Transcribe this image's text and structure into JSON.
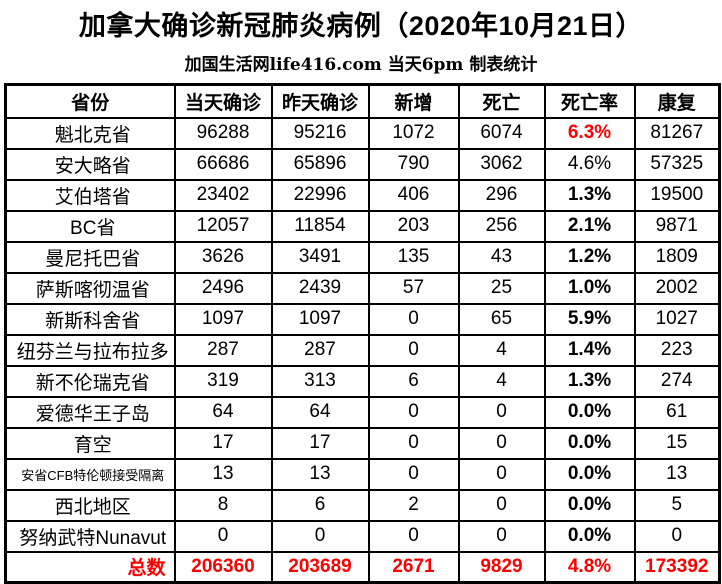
{
  "title": "加拿大确诊新冠肺炎病例（2020年10月21日）",
  "subtitle": "加国生活网life416.com 当天6pm 制表统计",
  "colors": {
    "accent_red": "#ff0000",
    "border": "#000000",
    "background": "#ffffff",
    "text": "#000000"
  },
  "table": {
    "headers": [
      "省份",
      "当天确诊",
      "昨天确诊",
      "新增",
      "死亡",
      "死亡率",
      "康复"
    ],
    "rows": [
      {
        "province": "魁北克省",
        "today": "96288",
        "yesterday": "95216",
        "new": "1072",
        "deaths": "6074",
        "death_rate": "6.3%",
        "recovered": "81267",
        "rate_red": true,
        "rate_bold": true,
        "small_label": false
      },
      {
        "province": "安大略省",
        "today": "66686",
        "yesterday": "65896",
        "new": "790",
        "deaths": "3062",
        "death_rate": "4.6%",
        "recovered": "57325",
        "rate_red": false,
        "rate_bold": false,
        "small_label": false
      },
      {
        "province": "艾伯塔省",
        "today": "23402",
        "yesterday": "22996",
        "new": "406",
        "deaths": "296",
        "death_rate": "1.3%",
        "recovered": "19500",
        "rate_red": false,
        "rate_bold": true,
        "small_label": false
      },
      {
        "province": "BC省",
        "today": "12057",
        "yesterday": "11854",
        "new": "203",
        "deaths": "256",
        "death_rate": "2.1%",
        "recovered": "9871",
        "rate_red": false,
        "rate_bold": true,
        "small_label": false
      },
      {
        "province": "曼尼托巴省",
        "today": "3626",
        "yesterday": "3491",
        "new": "135",
        "deaths": "43",
        "death_rate": "1.2%",
        "recovered": "1809",
        "rate_red": false,
        "rate_bold": true,
        "small_label": false
      },
      {
        "province": "萨斯喀彻温省",
        "today": "2496",
        "yesterday": "2439",
        "new": "57",
        "deaths": "25",
        "death_rate": "1.0%",
        "recovered": "2002",
        "rate_red": false,
        "rate_bold": true,
        "small_label": false
      },
      {
        "province": "新斯科舍省",
        "today": "1097",
        "yesterday": "1097",
        "new": "0",
        "deaths": "65",
        "death_rate": "5.9%",
        "recovered": "1027",
        "rate_red": false,
        "rate_bold": true,
        "small_label": false
      },
      {
        "province": "纽芬兰与拉布拉多",
        "today": "287",
        "yesterday": "287",
        "new": "0",
        "deaths": "4",
        "death_rate": "1.4%",
        "recovered": "223",
        "rate_red": false,
        "rate_bold": true,
        "small_label": false
      },
      {
        "province": "新不伦瑞克省",
        "today": "319",
        "yesterday": "313",
        "new": "6",
        "deaths": "4",
        "death_rate": "1.3%",
        "recovered": "274",
        "rate_red": false,
        "rate_bold": true,
        "small_label": false
      },
      {
        "province": "爱德华王子岛",
        "today": "64",
        "yesterday": "64",
        "new": "0",
        "deaths": "0",
        "death_rate": "0.0%",
        "recovered": "61",
        "rate_red": false,
        "rate_bold": true,
        "small_label": false
      },
      {
        "province": "育空",
        "today": "17",
        "yesterday": "17",
        "new": "0",
        "deaths": "0",
        "death_rate": "0.0%",
        "recovered": "15",
        "rate_red": false,
        "rate_bold": true,
        "small_label": false
      },
      {
        "province": "安省CFB特伦顿接受隔离",
        "today": "13",
        "yesterday": "13",
        "new": "0",
        "deaths": "0",
        "death_rate": "0.0%",
        "recovered": "13",
        "rate_red": false,
        "rate_bold": true,
        "small_label": true
      },
      {
        "province": "西北地区",
        "today": "8",
        "yesterday": "6",
        "new": "2",
        "deaths": "0",
        "death_rate": "0.0%",
        "recovered": "5",
        "rate_red": false,
        "rate_bold": true,
        "small_label": false
      },
      {
        "province": "努纳武特Nunavut",
        "today": "0",
        "yesterday": "0",
        "new": "0",
        "deaths": "0",
        "death_rate": "0.0%",
        "recovered": "0",
        "rate_red": false,
        "rate_bold": true,
        "small_label": false
      }
    ],
    "total_row": {
      "label": "总数",
      "today": "206360",
      "yesterday": "203689",
      "new": "2671",
      "deaths": "9829",
      "death_rate": "4.8%",
      "recovered": "173392"
    }
  }
}
